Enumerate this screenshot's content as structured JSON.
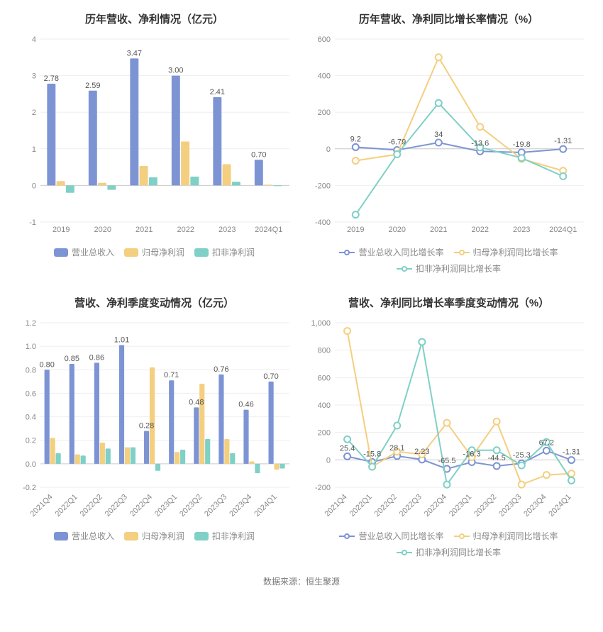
{
  "source_label": "数据来源：恒生聚源",
  "charts": {
    "c1": {
      "type": "bar",
      "title": "历年营收、净利情况（亿元）",
      "categories": [
        "2019",
        "2020",
        "2021",
        "2022",
        "2023",
        "2024Q1"
      ],
      "series": [
        {
          "name": "营业总收入",
          "color": "#7d94d4",
          "values": [
            2.78,
            2.59,
            3.47,
            3.0,
            2.41,
            0.7
          ]
        },
        {
          "name": "归母净利润",
          "color": "#f4cf7f",
          "values": [
            0.12,
            0.07,
            0.53,
            1.2,
            0.58,
            0.02
          ]
        },
        {
          "name": "扣非净利润",
          "color": "#7fd0c6",
          "values": [
            -0.2,
            -0.12,
            0.22,
            0.24,
            0.1,
            -0.02
          ]
        }
      ],
      "ymin": -1,
      "ymax": 4,
      "ytick_step": 1,
      "data_labels": [
        2.78,
        2.59,
        3.47,
        3.0,
        2.41,
        0.7
      ],
      "axis_color": "#cccccc",
      "grid_color": "#eeeeee",
      "label_fontsize": 11,
      "title_fontsize": 15,
      "bar_group_width": 0.68,
      "x_rotate": 0,
      "legend_shape": "rect"
    },
    "c2": {
      "type": "line",
      "title": "历年营收、净利同比增长率情况（%）",
      "categories": [
        "2019",
        "2020",
        "2021",
        "2022",
        "2023",
        "2024Q1"
      ],
      "series": [
        {
          "name": "营业总收入同比增长率",
          "color": "#7d94d4",
          "values": [
            9.2,
            -6.79,
            34.02,
            -13.62,
            -19.76,
            -1.31
          ]
        },
        {
          "name": "归母净利润同比增长率",
          "color": "#f4cf7f",
          "values": [
            -65,
            -30,
            500,
            120,
            -55,
            -120
          ]
        },
        {
          "name": "扣非净利润同比增长率",
          "color": "#7fd0c6",
          "values": [
            -360,
            -30,
            250,
            8,
            -50,
            -150
          ]
        }
      ],
      "ymin": -400,
      "ymax": 600,
      "ytick_step": 200,
      "data_labels": [
        9.2,
        -6.79,
        34.02,
        -13.62,
        -19.76,
        -1.31
      ],
      "axis_color": "#cccccc",
      "grid_color": "#eeeeee",
      "label_fontsize": 11,
      "title_fontsize": 15,
      "line_width": 2,
      "marker_radius": 4.5,
      "x_rotate": 0,
      "legend_shape": "line-dot"
    },
    "c3": {
      "type": "bar",
      "title": "营收、净利季度变动情况（亿元）",
      "categories": [
        "2021Q4",
        "2022Q1",
        "2022Q2",
        "2022Q3",
        "2022Q4",
        "2023Q1",
        "2023Q2",
        "2023Q3",
        "2023Q4",
        "2024Q1"
      ],
      "series": [
        {
          "name": "营业总收入",
          "color": "#7d94d4",
          "values": [
            0.8,
            0.85,
            0.86,
            1.01,
            0.28,
            0.71,
            0.48,
            0.76,
            0.46,
            0.7
          ]
        },
        {
          "name": "归母净利润",
          "color": "#f4cf7f",
          "values": [
            0.22,
            0.08,
            0.18,
            0.14,
            0.82,
            0.1,
            0.68,
            0.21,
            0.02,
            -0.05
          ]
        },
        {
          "name": "扣非净利润",
          "color": "#7fd0c6",
          "values": [
            0.09,
            0.07,
            0.13,
            0.14,
            -0.06,
            0.12,
            0.21,
            0.09,
            -0.08,
            -0.04
          ]
        }
      ],
      "ymin": -0.2,
      "ymax": 1.2,
      "ytick_step": 0.2,
      "data_labels": [
        0.8,
        0.85,
        0.86,
        1.01,
        0.28,
        0.71,
        0.48,
        0.76,
        0.46,
        0.7
      ],
      "axis_color": "#cccccc",
      "grid_color": "#eeeeee",
      "label_fontsize": 11,
      "title_fontsize": 15,
      "bar_group_width": 0.68,
      "x_rotate": -45,
      "legend_shape": "rect"
    },
    "c4": {
      "type": "line",
      "title": "营收、净利同比增长率季度变动情况（%）",
      "categories": [
        "2021Q4",
        "2022Q1",
        "2022Q2",
        "2022Q3",
        "2022Q4",
        "2023Q1",
        "2023Q2",
        "2023Q3",
        "2023Q4",
        "2024Q1"
      ],
      "series": [
        {
          "name": "营业总收入同比增长率",
          "color": "#7d94d4",
          "values": [
            25.45,
            -15.82,
            28.11,
            2.23,
            -65.49,
            -16.27,
            -44.53,
            -25.33,
            67.15,
            -1.31
          ]
        },
        {
          "name": "归母净利润同比增长率",
          "color": "#f4cf7f",
          "values": [
            940,
            -50,
            60,
            40,
            270,
            20,
            280,
            -180,
            -110,
            -100
          ]
        },
        {
          "name": "扣非净利润同比增长率",
          "color": "#7fd0c6",
          "values": [
            150,
            -50,
            250,
            860,
            -180,
            70,
            70,
            -40,
            130,
            -150
          ]
        }
      ],
      "ymin": -200,
      "ymax": 1000,
      "ytick_step": 200,
      "data_labels": [
        25.45,
        -15.82,
        28.11,
        2.23,
        -65.49,
        -16.27,
        -44.53,
        -25.33,
        67.15,
        -1.31
      ],
      "axis_color": "#cccccc",
      "grid_color": "#eeeeee",
      "label_fontsize": 11,
      "title_fontsize": 15,
      "line_width": 2,
      "marker_radius": 4.5,
      "x_rotate": -45,
      "legend_shape": "line-dot"
    }
  }
}
